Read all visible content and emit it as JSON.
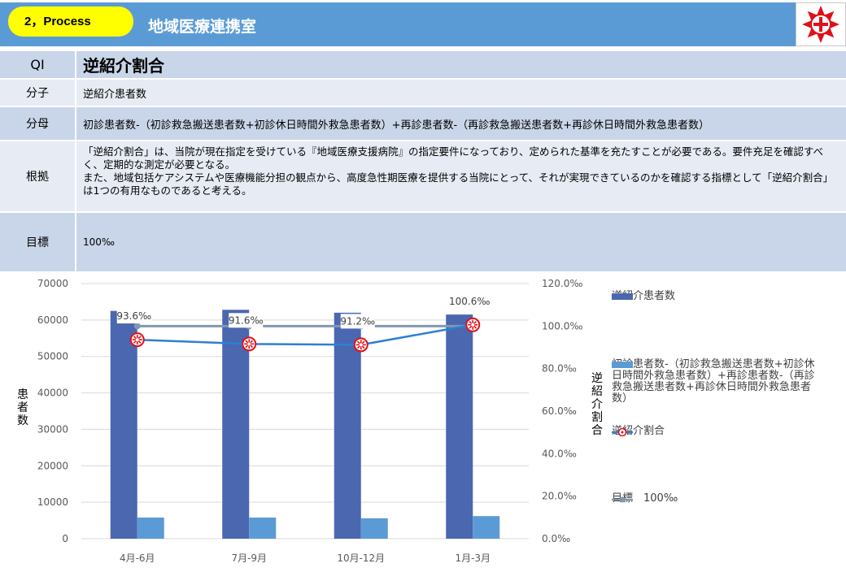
{
  "header": {
    "section_label": "2，Process",
    "department": "地域医療連携室"
  },
  "qi_table": {
    "qi_label": "QI",
    "qi_name": "逆紹介割合",
    "numerator_label": "分子",
    "numerator": "逆紹介患者数",
    "denominator_label": "分母",
    "denominator": "初診患者数-（初診救急搬送患者数+初診休日時間外救急患者数）+再診患者数-（再診救急搬送患者数+再診休日時間外救急患者数）",
    "basis_label": "根拠",
    "basis_lines": [
      "「逆紹介割合」は、当院が現在指定を受けている『地域医療支援病院』の指定要件になっており、定められた基準を充たすことが必要である。要件充足を確認すべく、定期的な測定が必要となる。",
      "また、地域包括ケアシステムや医療機能分担の観点から、高度急性期医療を提供する当院にとって、それが実現できているのかを確認する指標として「逆紹介割合」は1つの有用なものであると考える。"
    ],
    "target_label": "目標",
    "target": "100‰"
  },
  "chart_data": {
    "type": "bar",
    "categories": [
      "4月-6月",
      "7月-9月",
      "10月-12月",
      "1月-3月"
    ],
    "series": [
      {
        "name": "逆紹介患者数",
        "kind": "bar",
        "axis": "left",
        "color": "#4a67b0",
        "values": [
          62500,
          62800,
          62000,
          61500
        ]
      },
      {
        "name": "初診患者数-（初診救急搬送患者数+初診休日時間外救急患者数）+再診患者数-（再診救急搬送患者数+再診休日時間外救急患者数）",
        "kind": "bar",
        "axis": "left",
        "color": "#5b9bd5",
        "values": [
          5800,
          5800,
          5600,
          6200
        ]
      },
      {
        "name": "逆紹介割合",
        "kind": "line",
        "axis": "right",
        "color": "#2e7fd4",
        "values": [
          93.6,
          91.6,
          91.2,
          100.6
        ],
        "labels": [
          "93.6‰",
          "91.6‰",
          "91.2‰",
          "100.6‰"
        ]
      },
      {
        "name": "目標　100‰",
        "kind": "line",
        "axis": "right",
        "color": "#8497b0",
        "values": [
          100,
          100,
          100,
          100
        ]
      }
    ],
    "y_left": {
      "label": "患者数",
      "ylim": [
        0,
        70000
      ],
      "ticks": [
        "0",
        "10000",
        "20000",
        "30000",
        "40000",
        "50000",
        "60000",
        "70000"
      ]
    },
    "y_right": {
      "label": "逆紹介割合",
      "ylim": [
        0,
        120
      ],
      "ticks": [
        "0.0‰",
        "20.0‰",
        "40.0‰",
        "60.0‰",
        "80.0‰",
        "100.0‰",
        "120.0‰"
      ]
    },
    "grid": true,
    "legend_position": "right"
  }
}
